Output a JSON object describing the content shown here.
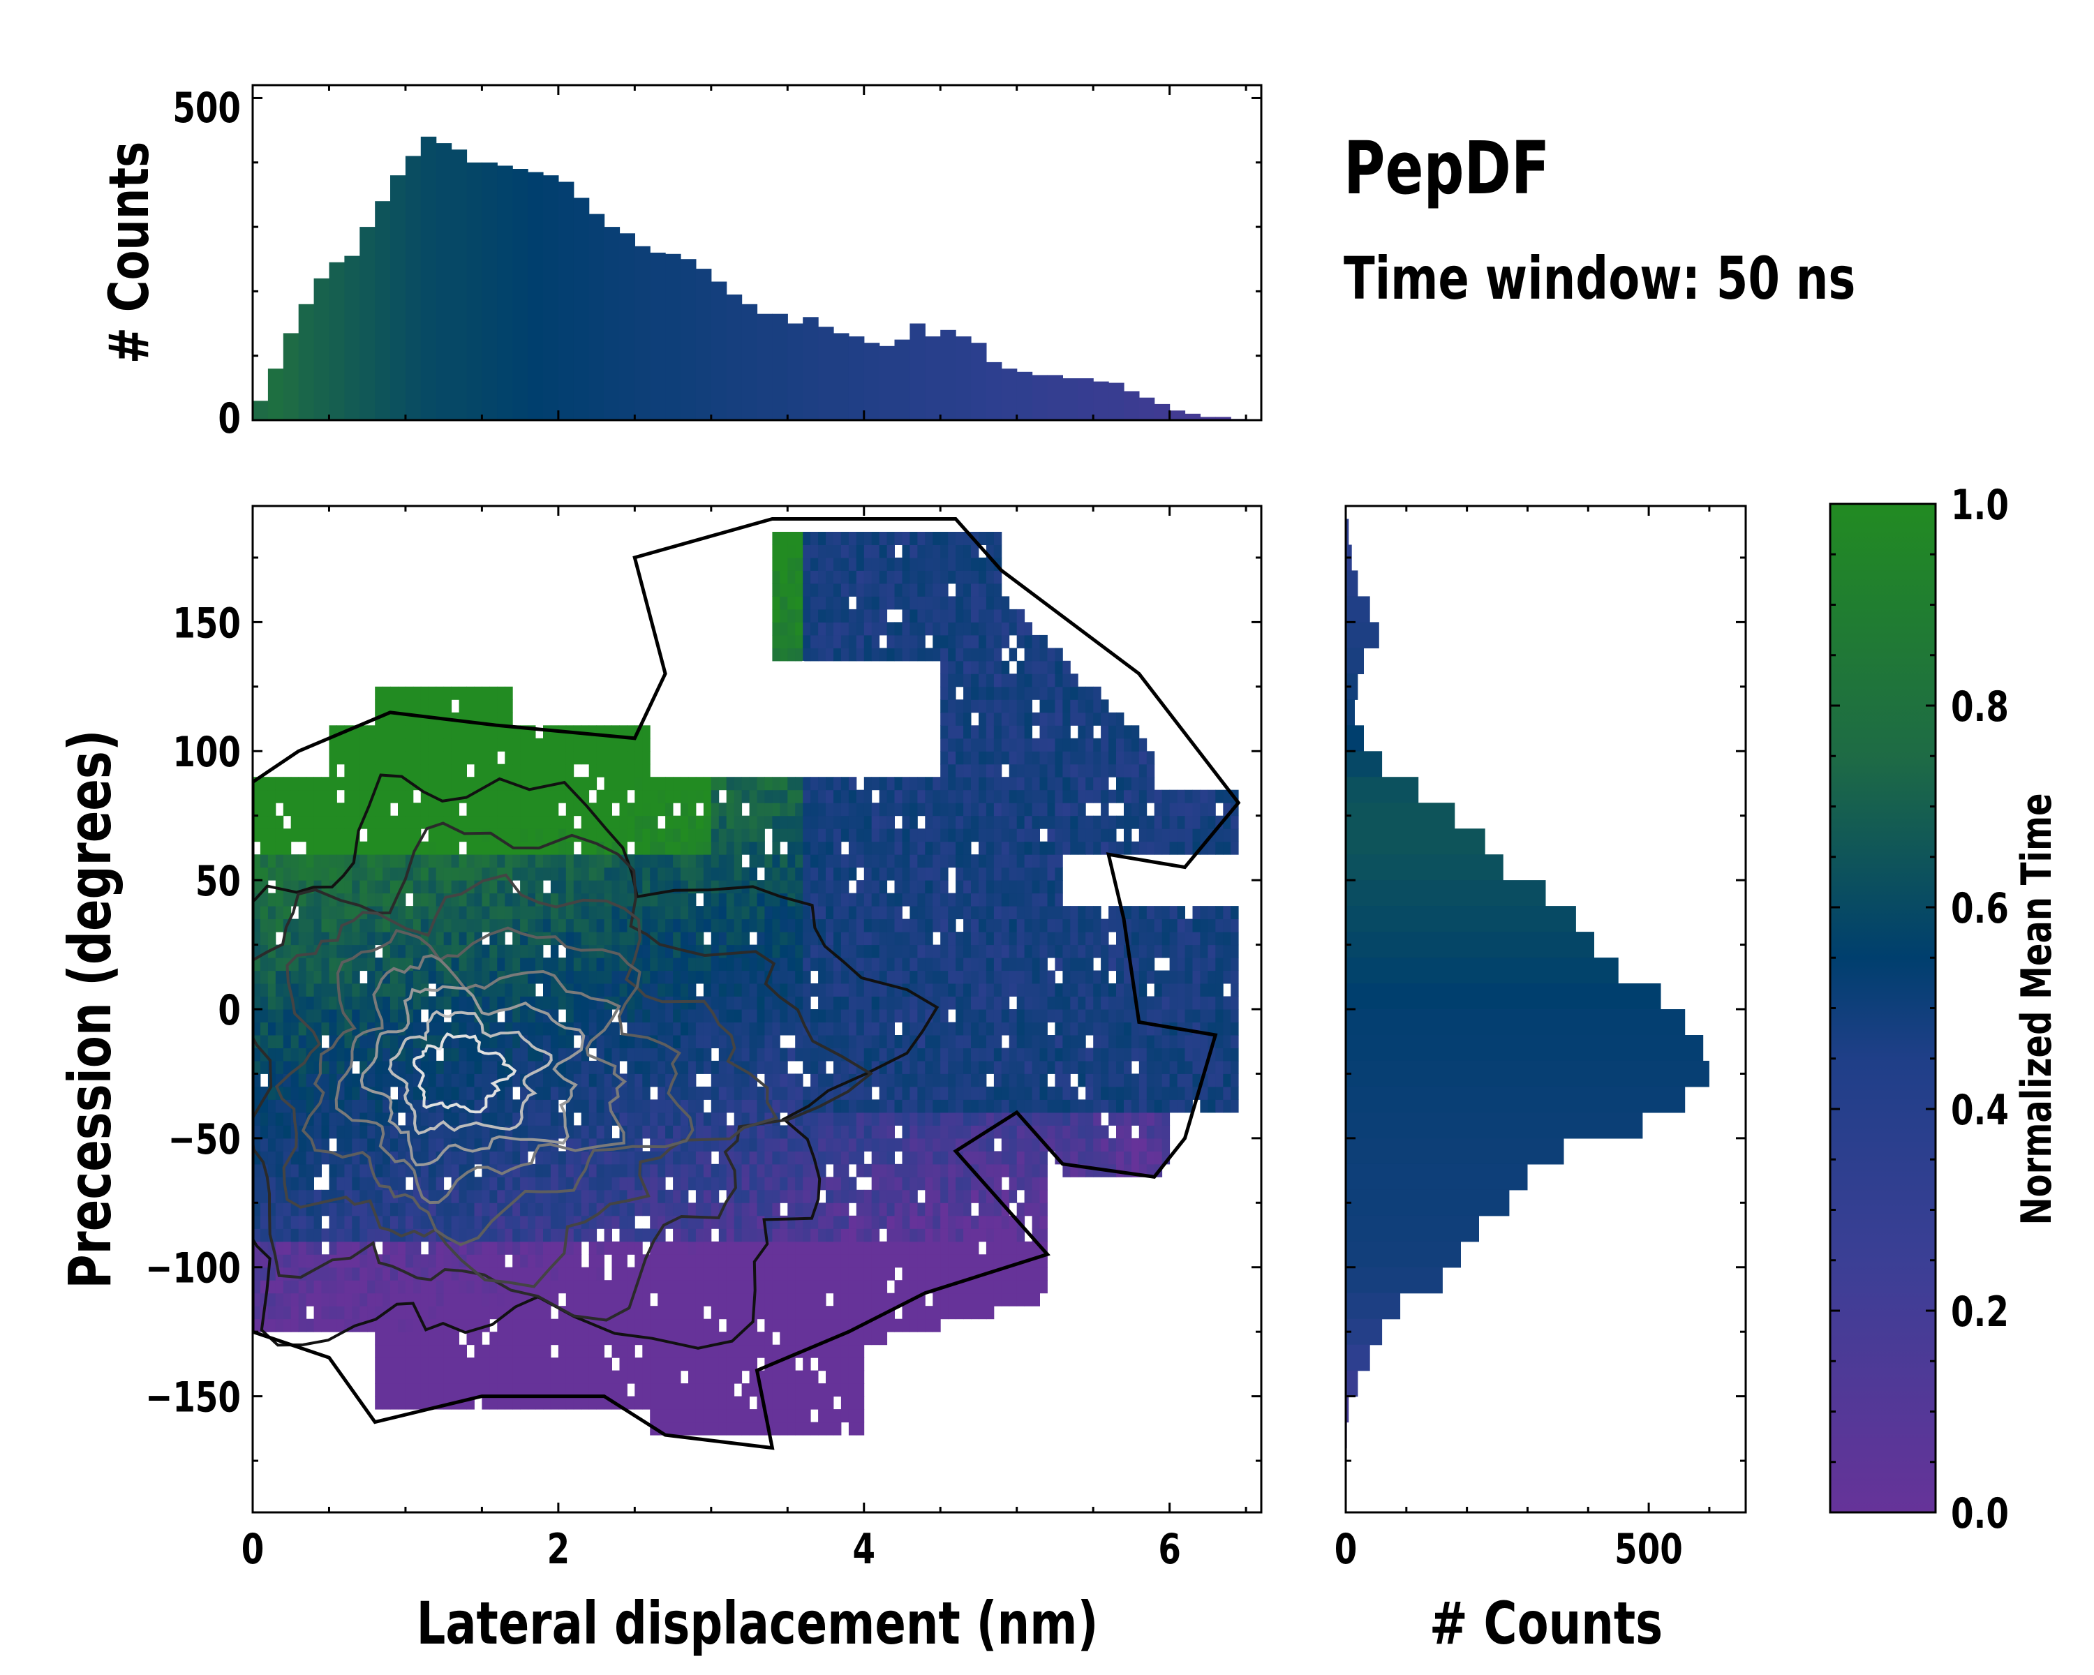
{
  "title": "PepDF",
  "subtitle": "Time window: 50 ns",
  "colors": {
    "colormap": [
      "#663399",
      "#2d3f8f",
      "#003f6e",
      "#1e6b45",
      "#228b22"
    ],
    "contour_light": "#e6e6e6",
    "contour_dark": "#1a1a1a"
  },
  "chart_data": [
    {
      "name": "main-heatmap",
      "type": "heatmap",
      "xlabel": "Lateral displacement (nm)",
      "ylabel": "Precession (degrees)",
      "xlim": [
        0,
        6.6
      ],
      "ylim": [
        -195,
        195
      ],
      "xticks": [
        0,
        2,
        4,
        6
      ],
      "xtick_labels": [
        "0",
        "2",
        "4",
        "6"
      ],
      "yticks": [
        -150,
        -100,
        -50,
        0,
        50,
        100,
        150
      ],
      "ytick_labels": [
        "−150",
        "−100",
        "−50",
        "0",
        "50",
        "100",
        "150"
      ],
      "color_label": "Normalized Mean Time",
      "density_peak": {
        "x": 1.3,
        "y": -25
      },
      "contours": "density contours, dark outer to light inner"
    },
    {
      "name": "top-histogram",
      "type": "bar",
      "xlabel": "",
      "ylabel": "# Counts",
      "xlim": [
        0,
        6.6
      ],
      "ylim": [
        0,
        520
      ],
      "yticks": [
        0,
        500
      ],
      "ytick_labels": [
        "0",
        "500"
      ],
      "x": [
        0.05,
        0.15,
        0.25,
        0.35,
        0.45,
        0.55,
        0.65,
        0.75,
        0.85,
        0.95,
        1.05,
        1.15,
        1.25,
        1.35,
        1.45,
        1.55,
        1.65,
        1.75,
        1.85,
        1.95,
        2.05,
        2.15,
        2.25,
        2.35,
        2.45,
        2.55,
        2.65,
        2.75,
        2.85,
        2.95,
        3.05,
        3.15,
        3.25,
        3.35,
        3.45,
        3.55,
        3.65,
        3.75,
        3.85,
        3.95,
        4.05,
        4.15,
        4.25,
        4.35,
        4.45,
        4.55,
        4.65,
        4.75,
        4.85,
        4.95,
        5.05,
        5.15,
        5.25,
        5.35,
        5.45,
        5.55,
        5.65,
        5.75,
        5.85,
        5.95,
        6.05,
        6.15,
        6.25,
        6.35,
        6.45
      ],
      "values": [
        30,
        80,
        135,
        180,
        220,
        245,
        255,
        300,
        340,
        380,
        410,
        440,
        430,
        420,
        400,
        400,
        395,
        390,
        385,
        380,
        370,
        345,
        320,
        300,
        290,
        270,
        260,
        258,
        250,
        235,
        215,
        195,
        180,
        165,
        165,
        150,
        160,
        145,
        135,
        130,
        120,
        115,
        125,
        150,
        130,
        140,
        130,
        120,
        90,
        80,
        75,
        70,
        70,
        65,
        65,
        60,
        58,
        45,
        35,
        25,
        15,
        10,
        5,
        5,
        2
      ],
      "colors": [
        0.75,
        0.78,
        0.75,
        0.72,
        0.7,
        0.68,
        0.66,
        0.64,
        0.62,
        0.6,
        0.58,
        0.56,
        0.55,
        0.55,
        0.54,
        0.53,
        0.52,
        0.51,
        0.5,
        0.49,
        0.48,
        0.47,
        0.46,
        0.45,
        0.44,
        0.43,
        0.42,
        0.42,
        0.41,
        0.4,
        0.39,
        0.38,
        0.37,
        0.36,
        0.36,
        0.35,
        0.34,
        0.33,
        0.33,
        0.32,
        0.31,
        0.3,
        0.3,
        0.29,
        0.28,
        0.28,
        0.27,
        0.26,
        0.25,
        0.24,
        0.24,
        0.23,
        0.22,
        0.22,
        0.21,
        0.2,
        0.2,
        0.19,
        0.18,
        0.17,
        0.16,
        0.15,
        0.14,
        0.13,
        0.12
      ]
    },
    {
      "name": "right-histogram",
      "type": "bar",
      "orientation": "horizontal",
      "xlabel": "# Counts",
      "ylabel": "",
      "xlim": [
        0,
        660
      ],
      "ylim": [
        -195,
        195
      ],
      "xticks": [
        0,
        500
      ],
      "xtick_labels": [
        "0",
        "500"
      ],
      "y": [
        185,
        175,
        165,
        155,
        145,
        135,
        125,
        115,
        105,
        95,
        85,
        75,
        65,
        55,
        45,
        35,
        25,
        15,
        5,
        -5,
        -15,
        -25,
        -35,
        -45,
        -55,
        -65,
        -75,
        -85,
        -95,
        -105,
        -115,
        -125,
        -135,
        -145,
        -155,
        -165
      ],
      "values": [
        5,
        10,
        20,
        40,
        55,
        30,
        20,
        15,
        30,
        60,
        120,
        180,
        230,
        260,
        330,
        380,
        410,
        450,
        520,
        560,
        590,
        600,
        560,
        490,
        360,
        300,
        270,
        220,
        190,
        160,
        90,
        60,
        40,
        20,
        5,
        2
      ],
      "colors": [
        0.25,
        0.26,
        0.3,
        0.32,
        0.34,
        0.36,
        0.4,
        0.44,
        0.5,
        0.55,
        0.6,
        0.62,
        0.62,
        0.6,
        0.58,
        0.56,
        0.54,
        0.52,
        0.5,
        0.48,
        0.47,
        0.46,
        0.45,
        0.44,
        0.43,
        0.42,
        0.42,
        0.41,
        0.4,
        0.38,
        0.34,
        0.3,
        0.25,
        0.2,
        0.15,
        0.12
      ]
    },
    {
      "name": "colorbar",
      "type": "colorbar",
      "label": "Normalized Mean Time",
      "range": [
        0,
        1
      ],
      "ticks": [
        0,
        0.2,
        0.4,
        0.6,
        0.8,
        1.0
      ],
      "tick_labels": [
        "0.0",
        "0.2",
        "0.4",
        "0.6",
        "0.8",
        "1.0"
      ]
    }
  ]
}
